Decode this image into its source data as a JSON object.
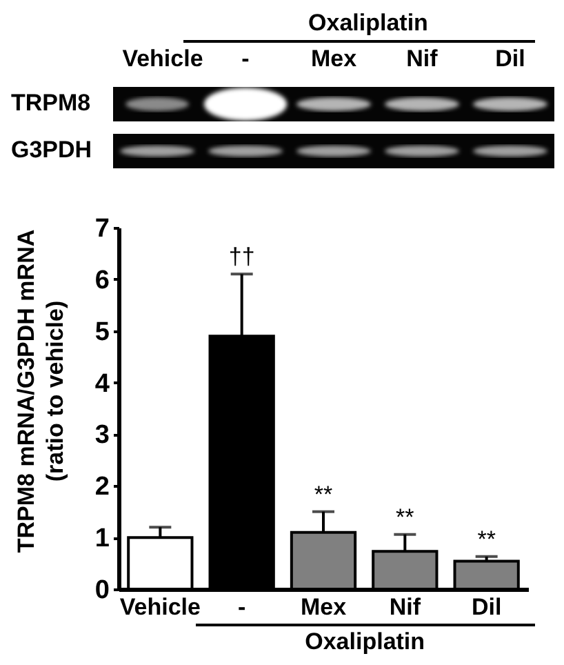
{
  "chart_data": {
    "type": "bar",
    "categories": [
      "Vehicle",
      "-",
      "Mex",
      "Nif",
      "Dil"
    ],
    "values": [
      1.0,
      4.9,
      1.1,
      0.73,
      0.54
    ],
    "colors": [
      "#ffffff",
      "#000000",
      "#808080",
      "#808080",
      "#808080"
    ],
    "errors": [
      [
        1.0,
        1.2
      ],
      [
        4.9,
        6.1
      ],
      [
        1.1,
        1.5
      ],
      [
        0.73,
        1.06
      ],
      [
        0.54,
        0.63
      ]
    ],
    "xlabel": "Oxaliplatin",
    "ylabel": "TRPM8 mRNA/G3PDH mRNA\n(ratio to vehicle)",
    "ylim": [
      0,
      7
    ],
    "yticks": [
      0,
      1,
      2,
      3,
      4,
      5,
      6,
      7
    ],
    "annotations": [
      "TRPM8",
      "G3PDH",
      {
        "text": "††",
        "x": "-",
        "y": 6.1
      },
      {
        "text": "**",
        "x": "Mex",
        "y": 1.5
      },
      {
        "text": "**",
        "x": "Nif",
        "y": 1.06
      },
      {
        "text": "**",
        "x": "Dil",
        "y": 0.63
      }
    ]
  }
}
